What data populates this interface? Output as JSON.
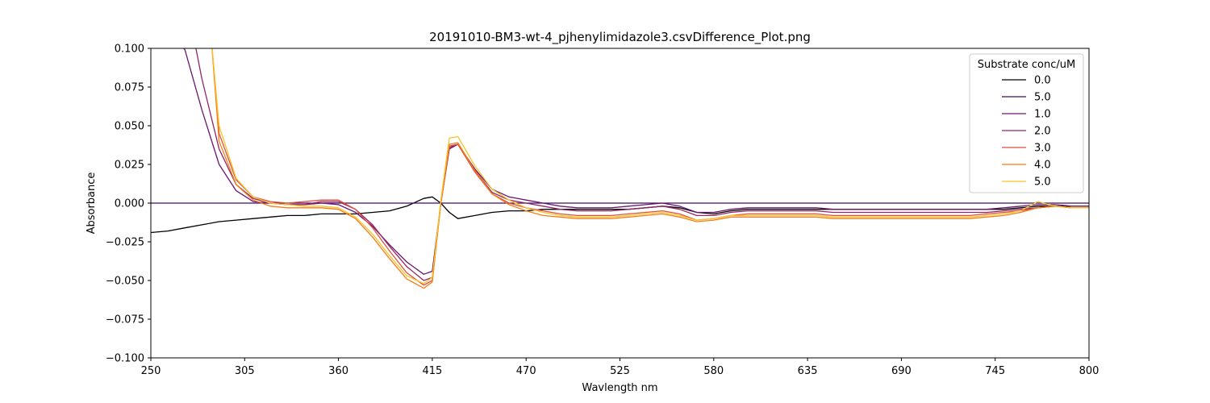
{
  "chart_data": {
    "type": "line",
    "title": "20191010-BM3-wt-4_pjhenylimidazole3.csvDifference_Plot.png",
    "xlabel": "Wavlength nm",
    "ylabel": "Absorbance",
    "xlim": [
      250,
      800
    ],
    "ylim": [
      -0.1,
      0.1
    ],
    "x_ticks": [
      250,
      305,
      360,
      415,
      470,
      525,
      580,
      635,
      690,
      745,
      800
    ],
    "x_tick_labels": [
      "250",
      "305",
      "360",
      "415",
      "470",
      "525",
      "580",
      "635",
      "690",
      "745",
      "800"
    ],
    "y_ticks": [
      0.1,
      0.075,
      0.05,
      0.025,
      0.0,
      -0.025,
      -0.05,
      -0.075,
      -0.1
    ],
    "y_tick_labels": [
      "0.100",
      "0.075",
      "0.050",
      "0.025",
      "0.000",
      "−0.025",
      "−0.050",
      "−0.075",
      "−0.100"
    ],
    "grid": false,
    "legend": {
      "title": "Substrate conc/uM",
      "position": "top-right"
    },
    "x": [
      250,
      260,
      270,
      280,
      290,
      300,
      310,
      320,
      330,
      340,
      350,
      360,
      370,
      380,
      390,
      400,
      410,
      415,
      420,
      425,
      430,
      440,
      450,
      460,
      470,
      480,
      490,
      500,
      510,
      520,
      530,
      540,
      550,
      560,
      570,
      580,
      590,
      600,
      610,
      620,
      630,
      640,
      650,
      660,
      670,
      680,
      690,
      700,
      710,
      720,
      730,
      740,
      750,
      760,
      770,
      780,
      790,
      800
    ],
    "series": [
      {
        "name": "0.0",
        "color": "#000004",
        "values": [
          -0.019,
          -0.018,
          -0.016,
          -0.014,
          -0.012,
          -0.011,
          -0.01,
          -0.009,
          -0.008,
          -0.008,
          -0.007,
          -0.007,
          -0.007,
          -0.006,
          -0.005,
          -0.002,
          0.003,
          0.004,
          0.0,
          -0.006,
          -0.01,
          -0.008,
          -0.006,
          -0.005,
          -0.005,
          -0.004,
          -0.004,
          -0.004,
          -0.004,
          -0.004,
          -0.004,
          -0.003,
          -0.002,
          -0.003,
          -0.006,
          -0.007,
          -0.005,
          -0.004,
          -0.004,
          -0.004,
          -0.004,
          -0.004,
          -0.004,
          -0.004,
          -0.004,
          -0.004,
          -0.004,
          -0.004,
          -0.004,
          -0.004,
          -0.004,
          -0.004,
          -0.004,
          -0.003,
          -0.002,
          -0.002,
          -0.002,
          -0.002
        ]
      },
      {
        "name": "5.0",
        "color": "#420a68",
        "values": [
          0.0,
          0.0,
          0.0,
          0.0,
          0.0,
          0.0,
          0.0,
          0.0,
          0.0,
          0.0,
          0.0,
          0.0,
          0.0,
          0.0,
          0.0,
          0.0,
          0.0,
          0.0,
          0.0,
          0.0,
          0.0,
          0.0,
          0.0,
          0.0,
          0.0,
          0.0,
          0.0,
          0.0,
          0.0,
          0.0,
          0.0,
          0.0,
          0.0,
          0.0,
          0.0,
          0.0,
          0.0,
          0.0,
          0.0,
          0.0,
          0.0,
          0.0,
          0.0,
          0.0,
          0.0,
          0.0,
          0.0,
          0.0,
          0.0,
          0.0,
          0.0,
          0.0,
          0.0,
          0.0,
          0.0,
          0.0,
          0.0,
          0.0
        ]
      },
      {
        "name": "1.0",
        "color": "#6a176e",
        "values": [
          null,
          null,
          0.099,
          0.06,
          0.025,
          0.008,
          0.001,
          0.0,
          -0.001,
          -0.001,
          0.0,
          -0.001,
          -0.006,
          -0.015,
          -0.027,
          -0.038,
          -0.046,
          -0.044,
          0.0,
          0.035,
          0.038,
          0.022,
          0.009,
          0.004,
          0.002,
          0.0,
          -0.002,
          -0.003,
          -0.003,
          -0.003,
          -0.002,
          -0.001,
          0.0,
          -0.002,
          -0.006,
          -0.006,
          -0.004,
          -0.003,
          -0.003,
          -0.003,
          -0.003,
          -0.003,
          -0.004,
          -0.004,
          -0.004,
          -0.004,
          -0.004,
          -0.004,
          -0.004,
          -0.004,
          -0.004,
          -0.004,
          -0.003,
          -0.002,
          -0.001,
          -0.001,
          -0.002,
          -0.002
        ]
      },
      {
        "name": "2.0",
        "color": "#932667",
        "values": [
          null,
          null,
          null,
          0.08,
          0.035,
          0.012,
          0.003,
          0.0,
          -0.001,
          -0.001,
          0.001,
          0.001,
          -0.004,
          -0.014,
          -0.028,
          -0.041,
          -0.05,
          -0.048,
          0.0,
          0.036,
          0.038,
          0.021,
          0.007,
          0.002,
          0.0,
          -0.002,
          -0.004,
          -0.005,
          -0.005,
          -0.005,
          -0.004,
          -0.003,
          -0.002,
          -0.004,
          -0.008,
          -0.008,
          -0.006,
          -0.005,
          -0.005,
          -0.005,
          -0.005,
          -0.005,
          -0.006,
          -0.006,
          -0.006,
          -0.006,
          -0.006,
          -0.006,
          -0.006,
          -0.006,
          -0.006,
          -0.006,
          -0.005,
          -0.004,
          -0.003,
          -0.002,
          -0.003,
          -0.003
        ]
      },
      {
        "name": "3.0",
        "color": "#dd513a",
        "values": [
          null,
          null,
          null,
          null,
          0.045,
          0.015,
          0.004,
          0.001,
          0.0,
          0.001,
          0.002,
          0.002,
          -0.004,
          -0.016,
          -0.031,
          -0.045,
          -0.053,
          -0.05,
          0.0,
          0.037,
          0.038,
          0.02,
          0.006,
          0.0,
          -0.003,
          -0.005,
          -0.007,
          -0.008,
          -0.008,
          -0.008,
          -0.007,
          -0.006,
          -0.005,
          -0.007,
          -0.011,
          -0.01,
          -0.008,
          -0.007,
          -0.007,
          -0.007,
          -0.007,
          -0.007,
          -0.008,
          -0.008,
          -0.008,
          -0.008,
          -0.008,
          -0.008,
          -0.008,
          -0.008,
          -0.008,
          -0.007,
          -0.006,
          -0.005,
          -0.003,
          -0.002,
          -0.003,
          -0.003
        ]
      },
      {
        "name": "4.0",
        "color": "#f57d15",
        "values": [
          null,
          null,
          null,
          null,
          0.04,
          0.012,
          0.002,
          -0.002,
          -0.003,
          -0.003,
          -0.003,
          -0.004,
          -0.01,
          -0.022,
          -0.036,
          -0.049,
          -0.055,
          -0.051,
          0.0,
          0.038,
          0.039,
          0.021,
          0.006,
          -0.001,
          -0.005,
          -0.008,
          -0.009,
          -0.01,
          -0.01,
          -0.01,
          -0.009,
          -0.008,
          -0.007,
          -0.009,
          -0.012,
          -0.011,
          -0.009,
          -0.009,
          -0.009,
          -0.009,
          -0.009,
          -0.009,
          -0.01,
          -0.01,
          -0.01,
          -0.01,
          -0.01,
          -0.01,
          -0.01,
          -0.01,
          -0.01,
          -0.009,
          -0.008,
          -0.006,
          -0.003,
          -0.002,
          -0.003,
          -0.003
        ]
      },
      {
        "name": "5.0",
        "color": "#fac228",
        "values": [
          null,
          null,
          null,
          null,
          0.05,
          0.016,
          0.004,
          0.0,
          -0.001,
          -0.002,
          -0.002,
          -0.003,
          -0.009,
          -0.02,
          -0.034,
          -0.047,
          -0.052,
          -0.048,
          0.002,
          0.042,
          0.043,
          0.024,
          0.009,
          0.002,
          -0.003,
          -0.006,
          -0.008,
          -0.009,
          -0.009,
          -0.009,
          -0.008,
          -0.007,
          -0.006,
          -0.008,
          -0.011,
          -0.01,
          -0.008,
          -0.008,
          -0.008,
          -0.008,
          -0.008,
          -0.008,
          -0.009,
          -0.009,
          -0.009,
          -0.009,
          -0.009,
          -0.009,
          -0.009,
          -0.009,
          -0.009,
          -0.008,
          -0.007,
          -0.005,
          0.001,
          -0.002,
          -0.003,
          -0.003
        ]
      }
    ]
  }
}
